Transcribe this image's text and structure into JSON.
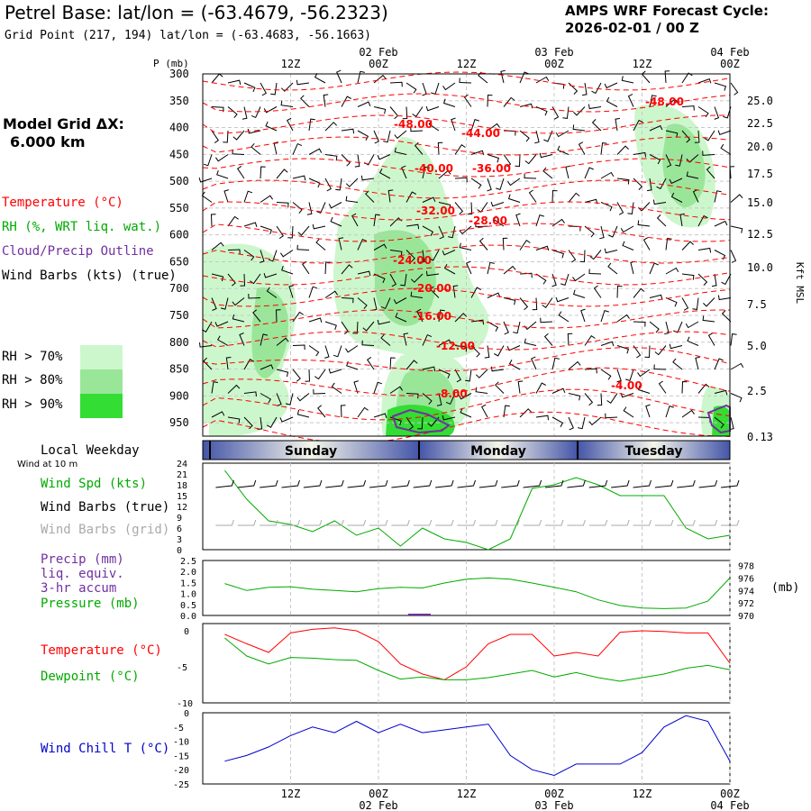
{
  "header": {
    "title": "Petrel Base:  lat/lon = (-63.4679, -56.2323)",
    "subtitle": "Grid Point (217, 194) lat/lon = (-63.4683, -56.1663)",
    "cycle_line1": "AMPS WRF Forecast Cycle:",
    "cycle_line2": "2026-02-01 / 00  Z"
  },
  "left_legend": {
    "grid_label": "Model Grid ΔX:",
    "grid_value": "6.000 km",
    "temperature": "Temperature (°C)",
    "rh": "RH (%, WRT liq. wat.)",
    "cloud": "Cloud/Precip Outline",
    "barbs": "Wind Barbs (kts) (true)",
    "rh70": "RH > 70%",
    "rh80": "RH > 80%",
    "rh90": "RH > 90%",
    "local_weekday": "Local Weekday",
    "wind_10m": "Wind at 10 m",
    "wind_spd": "Wind Spd (kts)",
    "wind_barbs_true": "Wind Barbs (true)",
    "wind_barbs_grid": "Wind Barbs (grid)",
    "precip1": "Precip (mm)",
    "precip2": "liq. equiv.",
    "precip3": "3-hr accum",
    "pressure": "Pressure (mb)",
    "temp_panel": "Temperature (°C)",
    "dewpoint": "Dewpoint (°C)",
    "windchill": "Wind Chill T (°C)"
  },
  "colors": {
    "temperature": "#ff0000",
    "rh": "#00aa00",
    "cloud": "#7030a0",
    "windchill": "#0000cc",
    "rh70": "#ccf7cc",
    "rh80": "#99e699",
    "rh90": "#33dd33",
    "grid_barbs": "#aaaaaa"
  },
  "time_axis": {
    "top_labels": [
      "12Z",
      "00Z",
      "12Z",
      "00Z",
      "12Z",
      "00Z"
    ],
    "top_dates": [
      "02 Feb",
      "03 Feb",
      "04 Feb"
    ],
    "bottom_labels": [
      "12Z",
      "00Z",
      "12Z",
      "00Z",
      "12Z",
      "00Z"
    ],
    "bottom_dates": [
      "02 Feb",
      "03 Feb",
      "04 Feb"
    ],
    "weekdays": [
      "Sunday",
      "Monday",
      "Tuesday"
    ]
  },
  "chart_data": [
    {
      "type": "heatmap",
      "title": "Vertical cross-section (time-height)",
      "ylabel": "P (mb)",
      "yticks_p": [
        "300",
        "350",
        "400",
        "450",
        "500",
        "550",
        "600",
        "650",
        "700",
        "750",
        "800",
        "850",
        "900",
        "950"
      ],
      "yticks_height": [
        "25.0",
        "22.5",
        "20.0",
        "17.5",
        "15.0",
        "12.5",
        "10.0",
        "7.5",
        "5.0",
        "2.5",
        "0.13"
      ],
      "ylabel_right": "Kft MSL",
      "p_label": "P (mb)",
      "temp_labels": [
        "-48.00",
        "-48.00",
        "-44.00",
        "-40.00",
        "-36.00",
        "-32.00",
        "-28.00",
        "-24.00",
        "-20.00",
        "-16.00",
        "-12.00",
        "-8.00",
        "-4.00"
      ]
    },
    {
      "type": "line",
      "title": "Wind Spd (kts)",
      "x_hours": [
        3,
        6,
        9,
        12,
        15,
        18,
        21,
        24,
        27,
        30,
        33,
        36,
        39,
        42,
        45,
        48,
        51,
        54,
        57,
        60,
        63,
        66,
        69,
        72
      ],
      "values": [
        22,
        14,
        8,
        7,
        5,
        8,
        4,
        6,
        1,
        6,
        3,
        2,
        0,
        3,
        17,
        18,
        20,
        18,
        15,
        15,
        15,
        6,
        3,
        4
      ],
      "yticks": [
        "24",
        "21",
        "18",
        "15",
        "12",
        "9",
        "6",
        "3",
        "0"
      ],
      "ylim": [
        0,
        24
      ]
    },
    {
      "type": "line",
      "title": "Precip / Pressure",
      "x_hours": [
        3,
        6,
        9,
        12,
        15,
        18,
        21,
        24,
        27,
        30,
        33,
        36,
        39,
        42,
        45,
        48,
        51,
        54,
        57,
        60,
        63,
        66,
        69,
        72
      ],
      "series": [
        {
          "name": "Pressure (mb)",
          "values": [
            975.1,
            974.0,
            974.5,
            974.6,
            974.2,
            974.0,
            973.8,
            974.3,
            974.5,
            974.4,
            975.2,
            975.8,
            976.0,
            975.8,
            975.2,
            974.5,
            973.8,
            972.5,
            971.6,
            971.2,
            971.1,
            971.2,
            972.3,
            976.0
          ]
        }
      ],
      "yticks_left": [
        "2.5",
        "2.0",
        "1.5",
        "1.0",
        "0.5",
        "0.0"
      ],
      "yticks_right": [
        "978",
        "976",
        "974",
        "972",
        "970"
      ],
      "unit_right": "(mb)"
    },
    {
      "type": "line",
      "title": "Temperature / Dewpoint",
      "x_hours": [
        3,
        6,
        9,
        12,
        15,
        18,
        21,
        24,
        27,
        30,
        33,
        36,
        39,
        42,
        45,
        48,
        51,
        54,
        57,
        60,
        63,
        66,
        69,
        72
      ],
      "series": [
        {
          "name": "Temperature (°C)",
          "values": [
            -0.5,
            -1.8,
            -3.0,
            -0.3,
            0.2,
            0.4,
            0.0,
            -1.5,
            -4.6,
            -6.0,
            -6.8,
            -5.0,
            -1.8,
            -0.5,
            -0.5,
            -3.5,
            -3.0,
            -3.5,
            -0.2,
            0.0,
            -0.1,
            -0.3,
            -0.3,
            -4.5
          ]
        },
        {
          "name": "Dewpoint (°C)",
          "values": [
            -1.0,
            -3.5,
            -4.6,
            -3.7,
            -3.8,
            -4.0,
            -4.1,
            -5.5,
            -6.7,
            -6.4,
            -6.8,
            -6.8,
            -6.5,
            -6.0,
            -5.5,
            -6.4,
            -5.8,
            -6.5,
            -7.0,
            -6.5,
            -6.0,
            -5.2,
            -4.8,
            -5.4
          ]
        }
      ],
      "yticks": [
        "0",
        "-5",
        "-10"
      ],
      "ylim": [
        -10,
        0
      ]
    },
    {
      "type": "line",
      "title": "Wind Chill T (°C)",
      "x_hours": [
        3,
        6,
        9,
        12,
        15,
        18,
        21,
        24,
        27,
        30,
        33,
        36,
        39,
        42,
        45,
        48,
        51,
        54,
        57,
        60,
        63,
        66,
        69,
        72
      ],
      "values": [
        -17,
        -15,
        -12,
        -8,
        -5,
        -7,
        -3,
        -7,
        -4,
        -7,
        -6,
        -5,
        -4,
        -15,
        -20,
        -22,
        -18,
        -18,
        -18,
        -14,
        -5,
        -1,
        -3,
        -17
      ],
      "yticks": [
        "0",
        "-5",
        "-10",
        "-15",
        "-20",
        "-25"
      ],
      "ylim": [
        -25,
        0
      ]
    }
  ]
}
